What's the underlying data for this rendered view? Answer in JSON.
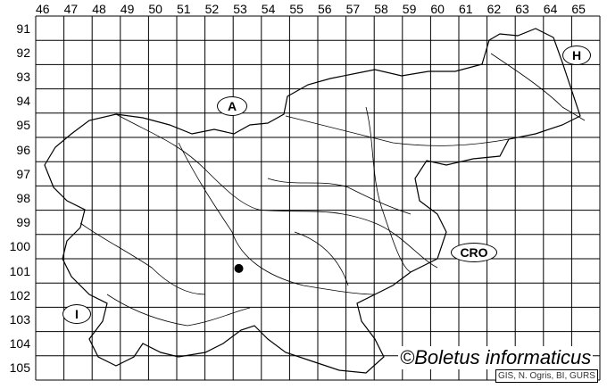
{
  "map": {
    "column_labels": [
      "46",
      "47",
      "48",
      "49",
      "50",
      "51",
      "52",
      "53",
      "54",
      "55",
      "56",
      "57",
      "58",
      "59",
      "60",
      "61",
      "62",
      "63",
      "64",
      "65"
    ],
    "row_labels": [
      "91",
      "92",
      "93",
      "94",
      "95",
      "96",
      "97",
      "98",
      "99",
      "100",
      "101",
      "102",
      "103",
      "104",
      "105"
    ],
    "countries": [
      {
        "code": "A"
      },
      {
        "code": "H"
      },
      {
        "code": "CRO"
      },
      {
        "code": "I"
      }
    ],
    "occurrence_points": [
      {
        "column": "53",
        "row": "101"
      }
    ],
    "copyright": "©Boletus informaticus",
    "source": "GIS, N. Ogris, BI, GURS",
    "colors": {
      "grid": "#000000",
      "point": "#000000",
      "background": "#ffffff"
    }
  }
}
